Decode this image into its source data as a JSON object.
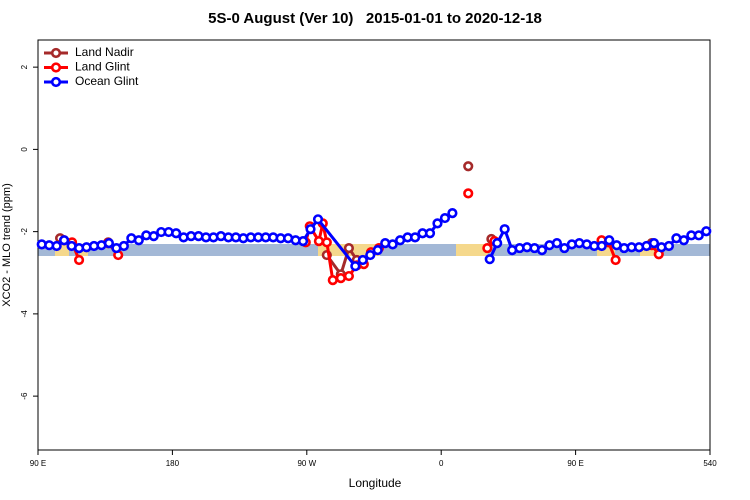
{
  "chart_data": {
    "type": "line",
    "title": "5S-0 August (Ver 10)   2015-01-01 to 2020-12-18",
    "x_label": "Longitude",
    "y_label": "XCO2 - MLO trend (ppm)",
    "xlim": [
      90,
      540
    ],
    "xticks": [
      {
        "value": 90,
        "label": "90 E"
      },
      180,
      {
        "value": 270,
        "label": "90 W"
      },
      {
        "value": 360,
        "label": "0"
      },
      {
        "value": 450,
        "label": "90 E"
      },
      540
    ],
    "ylim": [
      -7.31,
      2.66
    ],
    "yticks": [
      2,
      0,
      -2,
      -4,
      -6
    ],
    "legend": "top-left",
    "series": [
      {
        "name": "Land Nadir",
        "color": "#a52a2a",
        "x": [
          104.8,
          110,
          137.0,
          140,
          283.4,
          292.8,
          298.2,
          303.5,
          310,
          378.1,
          385,
          393.6,
          400,
          472.1,
          480,
          501.0
        ],
        "values": [
          -2.16,
          null,
          -2.26,
          null,
          -2.57,
          -3.04,
          -2.4,
          -2.69,
          null,
          -0.41,
          null,
          -2.18,
          null,
          -2.26,
          null,
          -2.28
        ]
      },
      {
        "name": "Land Glint",
        "color": "#ff0000",
        "x": [
          107.5,
          112.8,
          117.5,
          125,
          137.0,
          143.7,
          150,
          269.3,
          272.0,
          278.1,
          280.7,
          283.4,
          287.4,
          292.8,
          298.2,
          303.5,
          308.2,
          313.0,
          318.3,
          330,
          378.1,
          385,
          390.9,
          395.6,
          420,
          467.4,
          472.1,
          476.8,
          490,
          501.0,
          505.7
        ],
        "values": [
          -2.21,
          -2.26,
          -2.69,
          null,
          -2.28,
          -2.57,
          null,
          -2.26,
          -1.87,
          -2.23,
          -1.8,
          -2.26,
          -3.18,
          -3.13,
          -3.08,
          -2.82,
          -2.79,
          -2.5,
          -2.4,
          null,
          -1.07,
          null,
          -2.4,
          -2.23,
          null,
          -2.21,
          -2.26,
          -2.69,
          null,
          -2.33,
          -2.55
        ]
      },
      {
        "name": "Ocean Glint",
        "color": "#0000ff",
        "x": [
          92.5,
          97.5,
          102.5,
          107.5,
          112.5,
          117.5,
          122.5,
          127.5,
          132.5,
          137.5,
          142.5,
          147.5,
          152.5,
          157.5,
          162.5,
          167.5,
          172.5,
          177.5,
          182.5,
          187.5,
          192.5,
          197.5,
          202.5,
          207.5,
          212.5,
          217.5,
          222.5,
          227.5,
          232.5,
          237.5,
          242.5,
          247.5,
          252.5,
          257.5,
          262.5,
          267.5,
          272.5,
          277.5,
          302.5,
          307.5,
          312.5,
          317.5,
          322.5,
          327.5,
          332.5,
          337.5,
          342.5,
          347.5,
          352.5,
          357.5,
          362.5,
          367.5,
          372.5,
          392.5,
          397.5,
          402.5,
          407.5,
          412.5,
          417.5,
          422.5,
          427.5,
          432.5,
          437.5,
          442.5,
          447.5,
          452.5,
          457.5,
          462.5,
          467.5,
          472.5,
          477.5,
          482.5,
          487.5,
          492.5,
          497.5,
          502.5,
          507.5,
          512.5,
          517.5,
          522.5,
          527.5,
          532.5,
          537.5
        ],
        "values": [
          -2.31,
          -2.33,
          -2.35,
          -2.21,
          -2.35,
          -2.4,
          -2.38,
          -2.35,
          -2.33,
          -2.28,
          -2.4,
          -2.35,
          -2.16,
          -2.21,
          -2.09,
          -2.11,
          -2.01,
          -2.01,
          -2.04,
          -2.14,
          -2.11,
          -2.11,
          -2.14,
          -2.14,
          -2.11,
          -2.14,
          -2.14,
          -2.16,
          -2.14,
          -2.14,
          -2.14,
          -2.14,
          -2.16,
          -2.16,
          -2.21,
          -2.23,
          -1.94,
          -1.7,
          -2.84,
          -2.69,
          -2.57,
          -2.45,
          -2.28,
          -2.31,
          -2.21,
          -2.14,
          -2.14,
          -2.04,
          -2.04,
          -1.8,
          -1.67,
          -1.55,
          null,
          -2.67,
          -2.28,
          -1.94,
          -2.45,
          -2.4,
          -2.38,
          -2.4,
          -2.45,
          -2.33,
          -2.28,
          -2.4,
          -2.31,
          -2.28,
          -2.31,
          -2.35,
          -2.35,
          -2.21,
          -2.33,
          -2.4,
          -2.38,
          -2.38,
          -2.35,
          -2.28,
          -2.38,
          -2.35,
          -2.16,
          -2.21,
          -2.09,
          -2.09,
          -1.99
        ]
      }
    ]
  }
}
